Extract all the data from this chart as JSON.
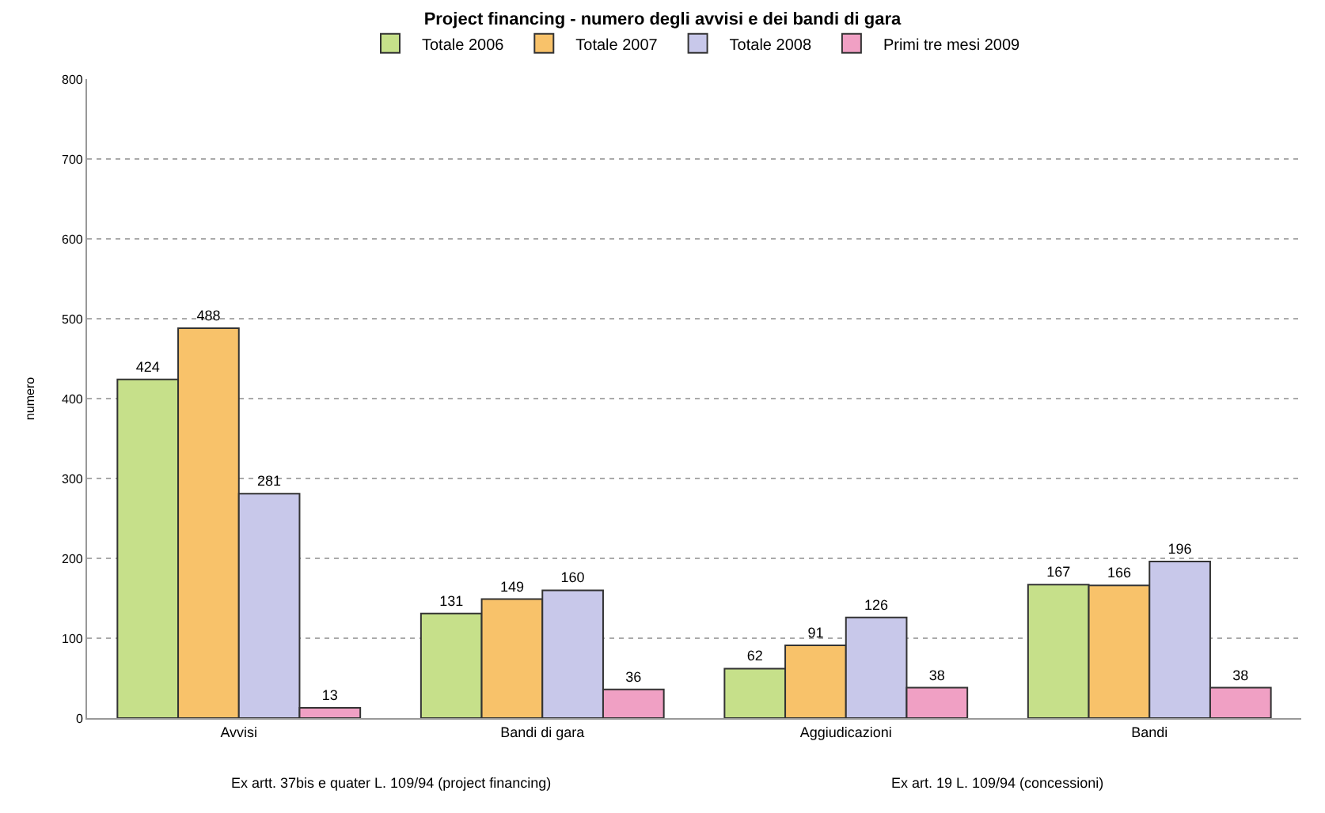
{
  "chart_data": {
    "type": "bar",
    "title": "Project financing - numero degli avvisi e dei bandi di gara",
    "ylabel": "numero",
    "categories": [
      "Avvisi",
      "Bandi di gara",
      "Aggiudicazioni",
      "Bandi"
    ],
    "series": [
      {
        "name": "Totale 2006",
        "color": "#c6e08a",
        "values": [
          424,
          131,
          62,
          167
        ]
      },
      {
        "name": "Totale 2007",
        "color": "#f8c26a",
        "values": [
          488,
          149,
          91,
          166
        ]
      },
      {
        "name": "Totale 2008",
        "color": "#c8c8ea",
        "values": [
          281,
          160,
          126,
          196
        ]
      },
      {
        "name": "Primi tre mesi 2009",
        "color": "#f0a0c4",
        "values": [
          13,
          36,
          38,
          38
        ]
      }
    ],
    "annotations": [
      "Ex artt. 37bis e quater L. 109/94 (project financing)",
      "Ex art. 19 L. 109/94 (concessioni)"
    ],
    "ylim": [
      0,
      800
    ],
    "yticks": [
      0,
      100,
      200,
      300,
      400,
      500,
      600,
      700,
      800
    ],
    "grid": "y",
    "legend": "top",
    "data_labels": true
  }
}
